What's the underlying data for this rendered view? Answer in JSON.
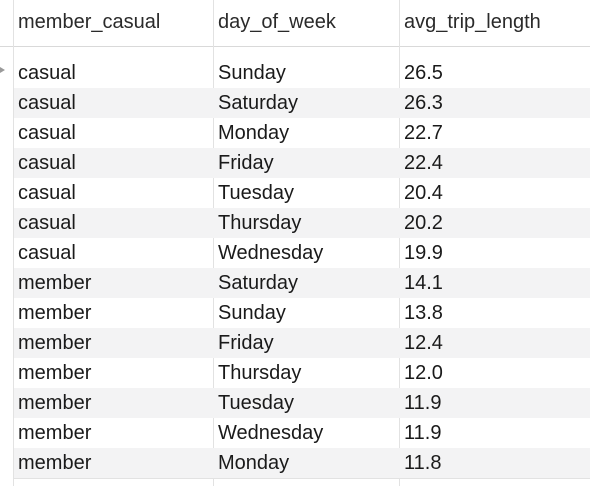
{
  "columns": [
    "member_casual",
    "day_of_week",
    "avg_trip_length"
  ],
  "rows": [
    [
      "casual",
      "Sunday",
      "26.5"
    ],
    [
      "casual",
      "Saturday",
      "26.3"
    ],
    [
      "casual",
      "Monday",
      "22.7"
    ],
    [
      "casual",
      "Friday",
      "22.4"
    ],
    [
      "casual",
      "Tuesday",
      "20.4"
    ],
    [
      "casual",
      "Thursday",
      "20.2"
    ],
    [
      "casual",
      "Wednesday",
      "19.9"
    ],
    [
      "member",
      "Saturday",
      "14.1"
    ],
    [
      "member",
      "Sunday",
      "13.8"
    ],
    [
      "member",
      "Friday",
      "12.4"
    ],
    [
      "member",
      "Thursday",
      "12.0"
    ],
    [
      "member",
      "Tuesday",
      "11.9"
    ],
    [
      "member",
      "Wednesday",
      "11.9"
    ],
    [
      "member",
      "Monday",
      "11.8"
    ]
  ]
}
